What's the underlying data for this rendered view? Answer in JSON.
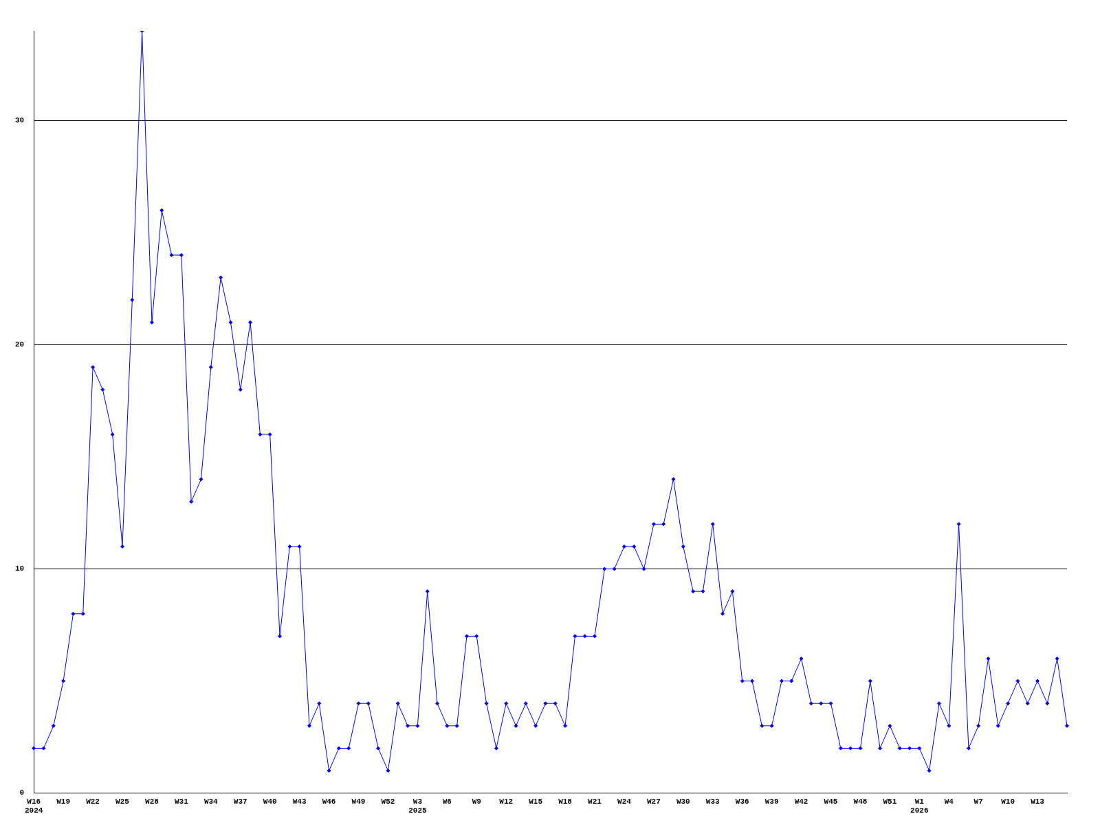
{
  "chart_data": {
    "type": "line",
    "categories": [
      "W16\n2024",
      null,
      null,
      "W19",
      null,
      null,
      "W22",
      null,
      null,
      "W25",
      null,
      null,
      "W28",
      null,
      null,
      "W31",
      null,
      null,
      "W34",
      null,
      null,
      "W37",
      null,
      null,
      "W40",
      null,
      null,
      "W43",
      null,
      null,
      "W46",
      null,
      null,
      "W49",
      null,
      null,
      "W52",
      null,
      null,
      "W3\n2025",
      null,
      null,
      "W6",
      null,
      null,
      "W9",
      null,
      null,
      "W12",
      null,
      null,
      "W15",
      null,
      null,
      "W18",
      null,
      null,
      "W21",
      null,
      null,
      "W24",
      null,
      null,
      "W27",
      null,
      null,
      "W30",
      null,
      null,
      "W33",
      null,
      null,
      "W36",
      null,
      null,
      "W39",
      null,
      null,
      "W42",
      null,
      null,
      "W45",
      null,
      null,
      "W48",
      null,
      null,
      "W51",
      null,
      null,
      "W1\n2026",
      null,
      null,
      "W4",
      null,
      null,
      "W7",
      null,
      null,
      "W10",
      null,
      null,
      "W13",
      null,
      null,
      null
    ],
    "series": [
      {
        "color": "#0000ff",
        "values": [
          2,
          2,
          3,
          5,
          8,
          8,
          19,
          18,
          16,
          11,
          22,
          34,
          21,
          26,
          24,
          24,
          13,
          14,
          19,
          23,
          21,
          18,
          21,
          16,
          16,
          7,
          11,
          11,
          3,
          4,
          1,
          2,
          2,
          4,
          4,
          2,
          1,
          4,
          3,
          3,
          9,
          4,
          3,
          3,
          7,
          7,
          4,
          2,
          4,
          3,
          4,
          3,
          4,
          4,
          3,
          7,
          7,
          7,
          10,
          10,
          11,
          11,
          10,
          12,
          12,
          14,
          11,
          9,
          9,
          12,
          8,
          9,
          5,
          5,
          3,
          3,
          5,
          5,
          6,
          4,
          4,
          4,
          2,
          2,
          2,
          5,
          2,
          3,
          2,
          2,
          2,
          1,
          4,
          3,
          12,
          2,
          3,
          6,
          3,
          4,
          5,
          4,
          5,
          4,
          6,
          3
        ]
      }
    ],
    "ylim": [
      0,
      34
    ],
    "yticks": [
      0,
      10,
      20,
      30
    ],
    "grid": "y",
    "legend": false,
    "marker": "diamond",
    "line_style": "solid"
  }
}
